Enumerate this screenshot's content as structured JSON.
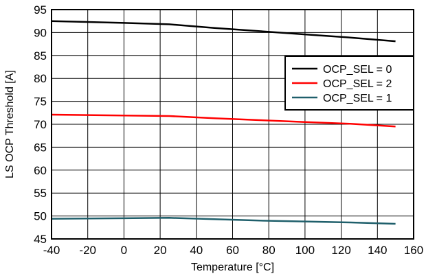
{
  "chart_data": {
    "type": "line",
    "xlabel": "Temperature [°C]",
    "ylabel": "LS OCP Threshold [A]",
    "xlim": [
      -40,
      160
    ],
    "ylim": [
      45,
      95
    ],
    "xticks": [
      -40,
      -20,
      0,
      20,
      40,
      60,
      80,
      100,
      120,
      140,
      160
    ],
    "yticks": [
      45,
      50,
      55,
      60,
      65,
      70,
      75,
      80,
      85,
      90,
      95
    ],
    "xtick_labels": [
      "-40",
      "-20",
      "0",
      "20",
      "40",
      "60",
      "80",
      "100",
      "120",
      "140",
      "160"
    ],
    "ytick_labels": [
      "45",
      "50",
      "55",
      "60",
      "65",
      "70",
      "75",
      "80",
      "85",
      "90",
      "95"
    ],
    "grid": true,
    "legend_position": "top-right",
    "series": [
      {
        "name": "OCP_SEL = 0",
        "color": "#000000",
        "x": [
          -40,
          0,
          25,
          50,
          75,
          100,
          125,
          150
        ],
        "y": [
          92.5,
          92.1,
          91.8,
          91.0,
          90.3,
          89.6,
          88.9,
          88.1
        ]
      },
      {
        "name": "OCP_SEL = 2",
        "color": "#ff0000",
        "x": [
          -40,
          0,
          25,
          50,
          75,
          100,
          125,
          150
        ],
        "y": [
          72.1,
          71.9,
          71.8,
          71.3,
          70.9,
          70.5,
          70.1,
          69.5
        ]
      },
      {
        "name": "OCP_SEL = 1",
        "color": "#1f5f6b",
        "x": [
          -40,
          0,
          25,
          50,
          75,
          100,
          125,
          150
        ],
        "y": [
          49.4,
          49.5,
          49.6,
          49.3,
          49.0,
          48.8,
          48.6,
          48.3
        ]
      }
    ]
  }
}
